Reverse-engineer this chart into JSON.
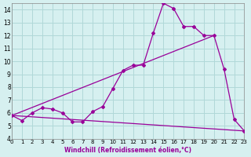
{
  "xlabel": "Windchill (Refroidissement éolien,°C)",
  "bg_color": "#d6f0f0",
  "grid_color": "#b0d8d8",
  "line_color": "#990099",
  "xlim": [
    0,
    23
  ],
  "ylim": [
    4,
    14.5
  ],
  "xticks": [
    0,
    1,
    2,
    3,
    4,
    5,
    6,
    7,
    8,
    9,
    10,
    11,
    12,
    13,
    14,
    15,
    16,
    17,
    18,
    19,
    20,
    21,
    22,
    23
  ],
  "yticks": [
    4,
    5,
    6,
    7,
    8,
    9,
    10,
    11,
    12,
    13,
    14
  ],
  "series1_x": [
    0,
    1,
    2,
    3,
    4,
    5,
    6,
    7,
    8,
    9,
    10,
    11,
    12,
    13,
    14,
    15,
    16,
    17,
    18,
    19,
    20,
    21,
    22,
    23
  ],
  "series1_y": [
    5.8,
    5.4,
    6.0,
    6.4,
    6.3,
    6.0,
    5.3,
    5.3,
    6.1,
    6.5,
    7.9,
    9.3,
    9.7,
    9.7,
    12.2,
    14.5,
    14.1,
    12.7,
    12.7,
    12.0,
    12.0,
    9.4,
    5.5,
    4.6
  ],
  "trend1_x": [
    0,
    20
  ],
  "trend1_y": [
    5.8,
    12.0
  ],
  "trend2_x": [
    0,
    23
  ],
  "trend2_y": [
    5.8,
    4.6
  ]
}
